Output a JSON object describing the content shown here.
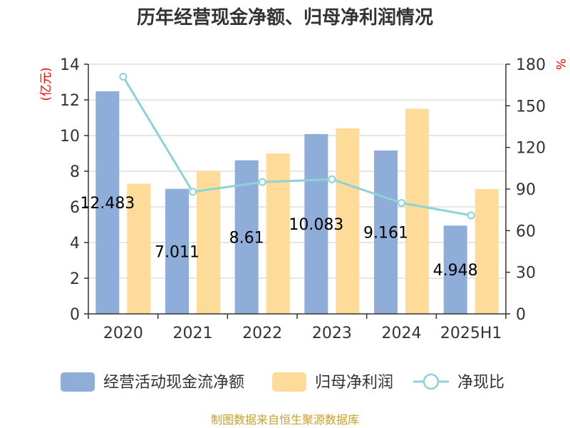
{
  "chart_data": {
    "type": "bar",
    "title": "历年经营现金净额、归母净利润情况",
    "categories": [
      "2020",
      "2021",
      "2022",
      "2023",
      "2024",
      "2025H1"
    ],
    "series": [
      {
        "name": "经营活动现金流净额",
        "type": "bar",
        "axis": "left",
        "values": [
          12.483,
          7.011,
          8.61,
          10.083,
          9.161,
          4.948
        ],
        "labels": [
          "12.483",
          "7.011",
          "8.61",
          "10.083",
          "9.161",
          "4.948"
        ],
        "color": "#8eadd9"
      },
      {
        "name": "归母净利润",
        "type": "bar",
        "axis": "left",
        "values": [
          7.3,
          8.0,
          9.0,
          10.4,
          11.5,
          7.0
        ],
        "color": "#fedb99"
      },
      {
        "name": "净现比",
        "type": "line",
        "axis": "right",
        "values": [
          171,
          88,
          95,
          97,
          80,
          71
        ],
        "color": "#8bd3d8"
      }
    ],
    "y_left": {
      "unit": "(亿元)",
      "ylim": [
        0,
        14
      ],
      "ticks": [
        "0",
        "2",
        "4",
        "6",
        "8",
        "10",
        "12",
        "14"
      ]
    },
    "y_right": {
      "unit": "%",
      "ylim": [
        0,
        180
      ],
      "ticks": [
        "0",
        "30",
        "60",
        "90",
        "120",
        "150",
        "180"
      ]
    },
    "grid": true,
    "legend_position": "bottom",
    "source": "制图数据来自恒生聚源数据库",
    "colors": {
      "title": "#333333",
      "axis": "#333333",
      "grid": "#cccccc",
      "unit_left": "#ff0000",
      "unit_right": "#ff0000",
      "source": "#c8a02a"
    }
  }
}
